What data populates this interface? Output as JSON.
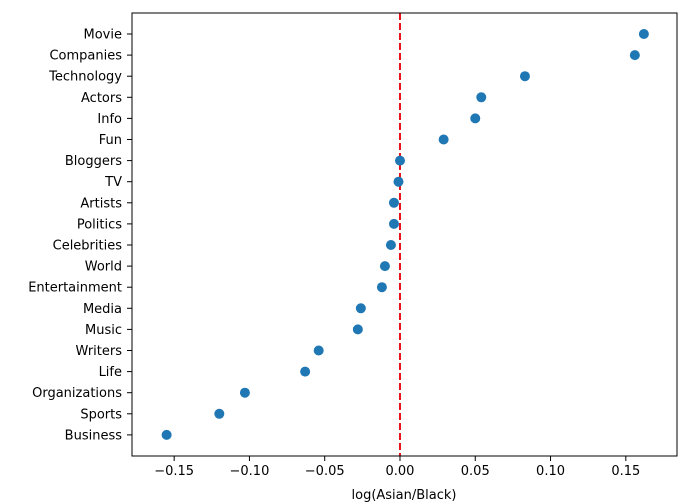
{
  "chart_data": {
    "type": "scatter",
    "title": "",
    "xlabel": "log(Asian/Black)",
    "ylabel": "",
    "xlim": [
      -0.178,
      0.184
    ],
    "xticks": [
      -0.15,
      -0.1,
      -0.05,
      0.0,
      0.05,
      0.1,
      0.15
    ],
    "xtick_labels": [
      "−0.15",
      "−0.10",
      "−0.05",
      "0.00",
      "0.05",
      "0.10",
      "0.15"
    ],
    "grid": false,
    "reference_line": {
      "x": 0.0,
      "color": "#e8111b",
      "style": "dashed"
    },
    "point_color": "#1f77b4",
    "points": [
      {
        "category": "Movie",
        "value": 0.162
      },
      {
        "category": "Companies",
        "value": 0.156
      },
      {
        "category": "Technology",
        "value": 0.083
      },
      {
        "category": "Actors",
        "value": 0.054
      },
      {
        "category": "Info",
        "value": 0.05
      },
      {
        "category": "Fun",
        "value": 0.029
      },
      {
        "category": "Bloggers",
        "value": 0.0
      },
      {
        "category": "TV",
        "value": -0.001
      },
      {
        "category": "Artists",
        "value": -0.004
      },
      {
        "category": "Politics",
        "value": -0.004
      },
      {
        "category": "Celebrities",
        "value": -0.006
      },
      {
        "category": "World",
        "value": -0.01
      },
      {
        "category": "Entertainment",
        "value": -0.012
      },
      {
        "category": "Media",
        "value": -0.026
      },
      {
        "category": "Music",
        "value": -0.028
      },
      {
        "category": "Writers",
        "value": -0.054
      },
      {
        "category": "Life",
        "value": -0.063
      },
      {
        "category": "Organizations",
        "value": -0.103
      },
      {
        "category": "Sports",
        "value": -0.12
      },
      {
        "category": "Business",
        "value": -0.155
      }
    ]
  }
}
